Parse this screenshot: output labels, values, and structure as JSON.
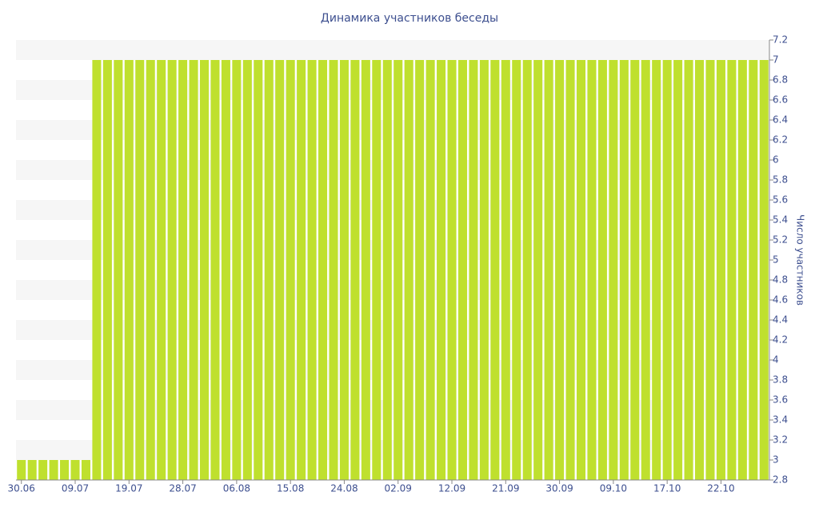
{
  "chart_data": {
    "type": "bar",
    "title": "Динамика участников беседы",
    "y_label": "Число участников",
    "categories": [
      "30.06",
      null,
      null,
      null,
      null,
      "09.07",
      null,
      null,
      null,
      null,
      "19.07",
      null,
      null,
      null,
      null,
      "28.07",
      null,
      null,
      null,
      null,
      "06.08",
      null,
      null,
      null,
      null,
      "15.08",
      null,
      null,
      null,
      null,
      "24.08",
      null,
      null,
      null,
      null,
      "02.09",
      null,
      null,
      null,
      null,
      "12.09",
      null,
      null,
      null,
      null,
      "21.09",
      null,
      null,
      null,
      null,
      "30.09",
      null,
      null,
      null,
      null,
      "09.10",
      null,
      null,
      null,
      null,
      "17.10",
      null,
      null,
      null,
      null,
      "22.10",
      null,
      null,
      null,
      null
    ],
    "values": [
      3,
      3,
      3,
      3,
      3,
      3,
      3,
      7,
      7,
      7,
      7,
      7,
      7,
      7,
      7,
      7,
      7,
      7,
      7,
      7,
      7,
      7,
      7,
      7,
      7,
      7,
      7,
      7,
      7,
      7,
      7,
      7,
      7,
      7,
      7,
      7,
      7,
      7,
      7,
      7,
      7,
      7,
      7,
      7,
      7,
      7,
      7,
      7,
      7,
      7,
      7,
      7,
      7,
      7,
      7,
      7,
      7,
      7,
      7,
      7,
      7,
      7,
      7,
      7,
      7,
      7,
      7,
      7,
      7,
      7
    ],
    "color": "#bfe02e",
    "ylim": [
      2.8,
      7.2
    ],
    "yticks": [
      2.8,
      3,
      3.2,
      3.4,
      3.6,
      3.8,
      4,
      4.2,
      4.4,
      4.6,
      4.8,
      5,
      5.2,
      5.4,
      5.6,
      5.8,
      6,
      6.2,
      6.4,
      6.6,
      6.8,
      7,
      7.2
    ],
    "y_axis_side": "right",
    "grid": "bands"
  }
}
